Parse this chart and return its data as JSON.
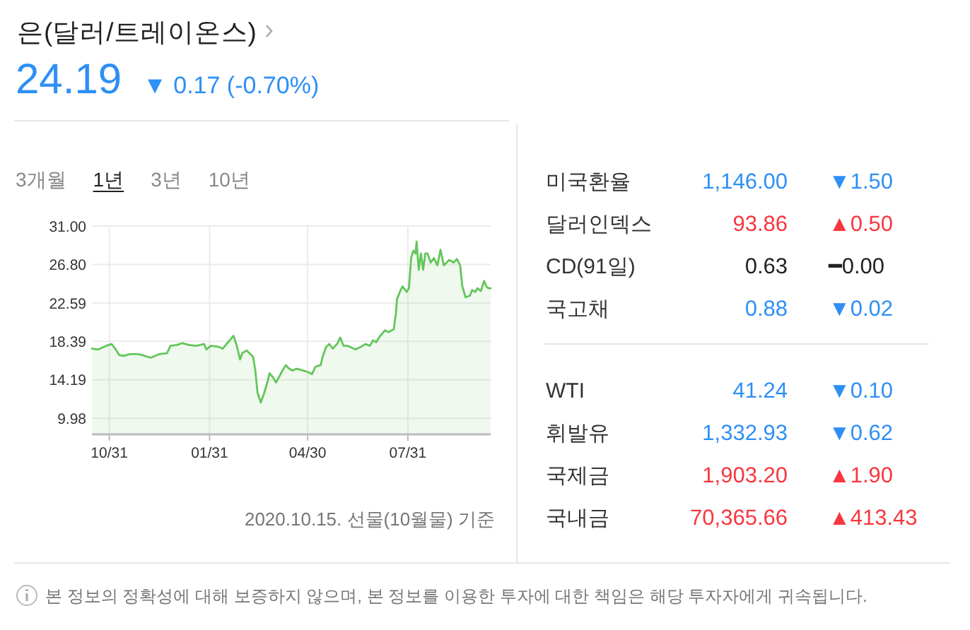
{
  "chart_data": [
    {
      "type": "area",
      "title": "은(달러/트레이온스)",
      "subtitle": "24.19 ▼ 0.17 (-0.70%)",
      "x": [
        "2019-10-15",
        "2019-10-21",
        "2019-10-28",
        "2019-11-02",
        "2019-11-06",
        "2019-11-09",
        "2019-11-13",
        "2019-11-19",
        "2019-11-26",
        "2019-11-30",
        "2019-12-08",
        "2019-12-16",
        "2019-12-23",
        "2019-12-26",
        "2020-01-01",
        "2020-01-06",
        "2020-01-12",
        "2020-01-19",
        "2020-01-26",
        "2020-01-28",
        "2020-02-01",
        "2020-02-08",
        "2020-02-12",
        "2020-02-17",
        "2020-02-22",
        "2020-02-25",
        "2020-02-28",
        "2020-03-01",
        "2020-03-05",
        "2020-03-11",
        "2020-03-13",
        "2020-03-15",
        "2020-03-18",
        "2020-03-21",
        "2020-03-24",
        "2020-03-26",
        "2020-03-29",
        "2020-04-01",
        "2020-04-06",
        "2020-04-10",
        "2020-04-12",
        "2020-04-16",
        "2020-04-20",
        "2020-04-26",
        "2020-05-01",
        "2020-05-04",
        "2020-05-07",
        "2020-05-12",
        "2020-05-14",
        "2020-05-17",
        "2020-05-20",
        "2020-05-23",
        "2020-05-27",
        "2020-05-30",
        "2020-06-02",
        "2020-06-06",
        "2020-06-13",
        "2020-06-18",
        "2020-06-22",
        "2020-06-26",
        "2020-06-29",
        "2020-07-02",
        "2020-07-05",
        "2020-07-10",
        "2020-07-13",
        "2020-07-18",
        "2020-07-20",
        "2020-07-21",
        "2020-07-24",
        "2020-07-26",
        "2020-07-30",
        "2020-08-01",
        "2020-08-03",
        "2020-08-05",
        "2020-08-07",
        "2020-08-08",
        "2020-08-10",
        "2020-08-12",
        "2020-08-14",
        "2020-08-16",
        "2020-08-18",
        "2020-08-21",
        "2020-08-24",
        "2020-08-27",
        "2020-08-30",
        "2020-09-02",
        "2020-09-07",
        "2020-09-11",
        "2020-09-14",
        "2020-09-17",
        "2020-09-19",
        "2020-09-22",
        "2020-09-26",
        "2020-09-28",
        "2020-10-01",
        "2020-10-03",
        "2020-10-06",
        "2020-10-09",
        "2020-10-11",
        "2020-10-13",
        "2020-10-15"
      ],
      "series": [
        {
          "color": "#63c65a",
          "values": [
            17.6,
            17.5,
            17.9,
            18.1,
            17.5,
            16.9,
            16.8,
            17.0,
            17.0,
            16.9,
            16.6,
            17.0,
            17.1,
            17.9,
            18.0,
            18.2,
            18.0,
            17.9,
            18.1,
            17.5,
            17.9,
            17.8,
            17.6,
            18.3,
            19.0,
            17.9,
            16.4,
            17.1,
            17.4,
            16.7,
            15.2,
            12.8,
            11.7,
            12.7,
            13.9,
            14.9,
            14.5,
            13.9,
            15.0,
            15.8,
            15.5,
            15.2,
            15.4,
            15.2,
            15.0,
            14.8,
            15.6,
            15.8,
            16.8,
            17.8,
            18.1,
            17.6,
            18.1,
            18.8,
            17.9,
            17.9,
            17.5,
            17.8,
            18.1,
            17.9,
            18.5,
            18.3,
            18.9,
            19.6,
            19.4,
            19.7,
            21.4,
            23.0,
            23.9,
            24.4,
            23.8,
            24.2,
            27.5,
            28.3,
            28.0,
            29.3,
            26.2,
            28.0,
            26.2,
            28.0,
            28.0,
            27.0,
            27.5,
            26.7,
            28.4,
            26.7,
            27.3,
            27.0,
            27.4,
            26.7,
            24.4,
            23.2,
            23.4,
            24.0,
            23.8,
            24.2,
            23.9,
            25.0,
            24.4,
            24.2,
            24.2
          ]
        }
      ],
      "xlim": [
        "2019-10-15",
        "2020-10-15"
      ],
      "xticks": [
        {
          "value": "2019-10-31",
          "label": "10/31"
        },
        {
          "value": "2020-01-31",
          "label": "01/31"
        },
        {
          "value": "2020-04-30",
          "label": "04/30"
        },
        {
          "value": "2020-07-31",
          "label": "07/31"
        }
      ],
      "ylim": [
        8.3,
        31
      ],
      "yticks": [
        {
          "value": 9.98,
          "label": "9.98"
        },
        {
          "value": 14.19,
          "label": "14.19"
        },
        {
          "value": 18.39,
          "label": "18.39"
        },
        {
          "value": 22.59,
          "label": "22.59"
        },
        {
          "value": 26.8,
          "label": "26.80"
        },
        {
          "value": 31,
          "label": "31.00"
        }
      ],
      "grid": true,
      "annotations": [
        "3개월",
        "1년",
        "3년",
        "10년",
        "2020.10.15. 선물(10월물) 기준",
        "본 정보의 정확성에 대해 보증하지 않으며, 본 정보를 이용한 투자에 대한 책임은 해당 투자자에게 귀속됩니다."
      ]
    },
    {
      "type": "other",
      "categories": [
        "미국환율",
        "달러인덱스",
        "CD(91일)",
        "국고채"
      ],
      "series": [
        {
          "values": [
            1146.0,
            93.86,
            0.63,
            0.88
          ],
          "value_labels": [
            "1,146.00",
            "93.86",
            "0.63",
            "0.88"
          ],
          "colors": [
            "#2e8ff5",
            "#f7363f",
            "#222222",
            "#2e8ff5"
          ]
        },
        {
          "values": [
            1.5,
            0.5,
            0.0,
            0.02
          ],
          "value_labels": [
            "▼1.50",
            "▲0.50",
            "━0.00",
            "▼0.02"
          ],
          "colors": [
            "#2e8ff5",
            "#f7363f",
            "#222222",
            "#2e8ff5"
          ]
        }
      ]
    },
    {
      "type": "other",
      "categories": [
        "WTI",
        "휘발유",
        "국제금",
        "국내금"
      ],
      "series": [
        {
          "values": [
            41.24,
            1332.93,
            1903.2,
            70365.66
          ],
          "value_labels": [
            "41.24",
            "1,332.93",
            "1,903.20",
            "70,365.66"
          ],
          "colors": [
            "#2e8ff5",
            "#2e8ff5",
            "#f7363f",
            "#f7363f"
          ]
        },
        {
          "values": [
            0.1,
            0.62,
            1.9,
            413.43
          ],
          "value_labels": [
            "▼0.10",
            "▼0.62",
            "▲1.90",
            "▲413.43"
          ],
          "colors": [
            "#2e8ff5",
            "#2e8ff5",
            "#f7363f",
            "#f7363f"
          ]
        }
      ]
    }
  ]
}
